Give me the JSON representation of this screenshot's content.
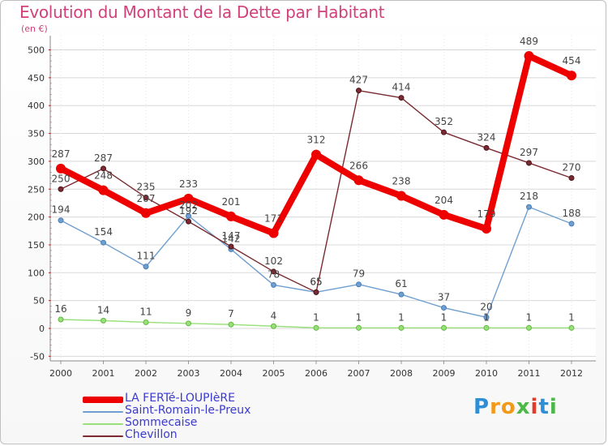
{
  "header": {
    "title": "Evolution du Montant de la Dette par Habitant",
    "unit": "(en €)"
  },
  "logo": {
    "text": "Proxiti",
    "colors": [
      "#2f8fd6",
      "#f29a18",
      "#f29a18",
      "#4cb848",
      "#e23a2b",
      "#2f8fd6",
      "#4cb848"
    ]
  },
  "chart_data": {
    "type": "line",
    "title": "Evolution du Montant de la Dette par Habitant",
    "ylabel": "(en €)",
    "xlabel": "",
    "categories": [
      "2000",
      "2001",
      "2002",
      "2003",
      "2004",
      "2005",
      "2006",
      "2007",
      "2008",
      "2009",
      "2010",
      "2011",
      "2012"
    ],
    "ylim": [
      -50,
      500
    ],
    "yticks": [
      -50,
      0,
      50,
      100,
      150,
      200,
      250,
      300,
      350,
      400,
      450,
      500
    ],
    "grid": "horizontal",
    "legend_position": "bottom-left",
    "series": [
      {
        "name": "LA FERTé-LOUPIèRE",
        "color": "#ee0000",
        "values": [
          287,
          248,
          207,
          233,
          201,
          171,
          312,
          266,
          238,
          204,
          179,
          489,
          454
        ],
        "labels": [
          "287",
          "248",
          "207",
          "233",
          "201",
          "171",
          "312",
          "266",
          "238",
          "204",
          "179",
          "489",
          "454"
        ]
      },
      {
        "name": "Saint-Romain-le-Preux",
        "color": "#6f9fd0",
        "values": [
          194,
          154,
          111,
          202,
          142,
          78,
          65,
          79,
          61,
          37,
          20,
          218,
          188
        ],
        "labels": [
          "194",
          "154",
          "111",
          "202",
          "142",
          "78",
          "65",
          "79",
          "61",
          "37",
          "20",
          "218",
          "188"
        ]
      },
      {
        "name": "Sommecaise",
        "color": "#99e07a",
        "values": [
          16,
          14,
          11,
          9,
          7,
          4,
          1,
          1,
          1,
          1,
          1,
          1,
          1
        ],
        "labels": [
          "16",
          "14",
          "11",
          "9",
          "7",
          "4",
          "1",
          "1",
          "1",
          "1",
          "1",
          "1",
          "1"
        ]
      },
      {
        "name": "Chevillon",
        "color": "#7a2a30",
        "values": [
          250,
          287,
          235,
          192,
          147,
          102,
          65,
          427,
          414,
          352,
          324,
          297,
          270
        ],
        "labels": [
          "250",
          "287",
          "235",
          "192",
          "147",
          "102",
          "65",
          "427",
          "414",
          "352",
          "324",
          "297",
          "270"
        ]
      }
    ]
  }
}
